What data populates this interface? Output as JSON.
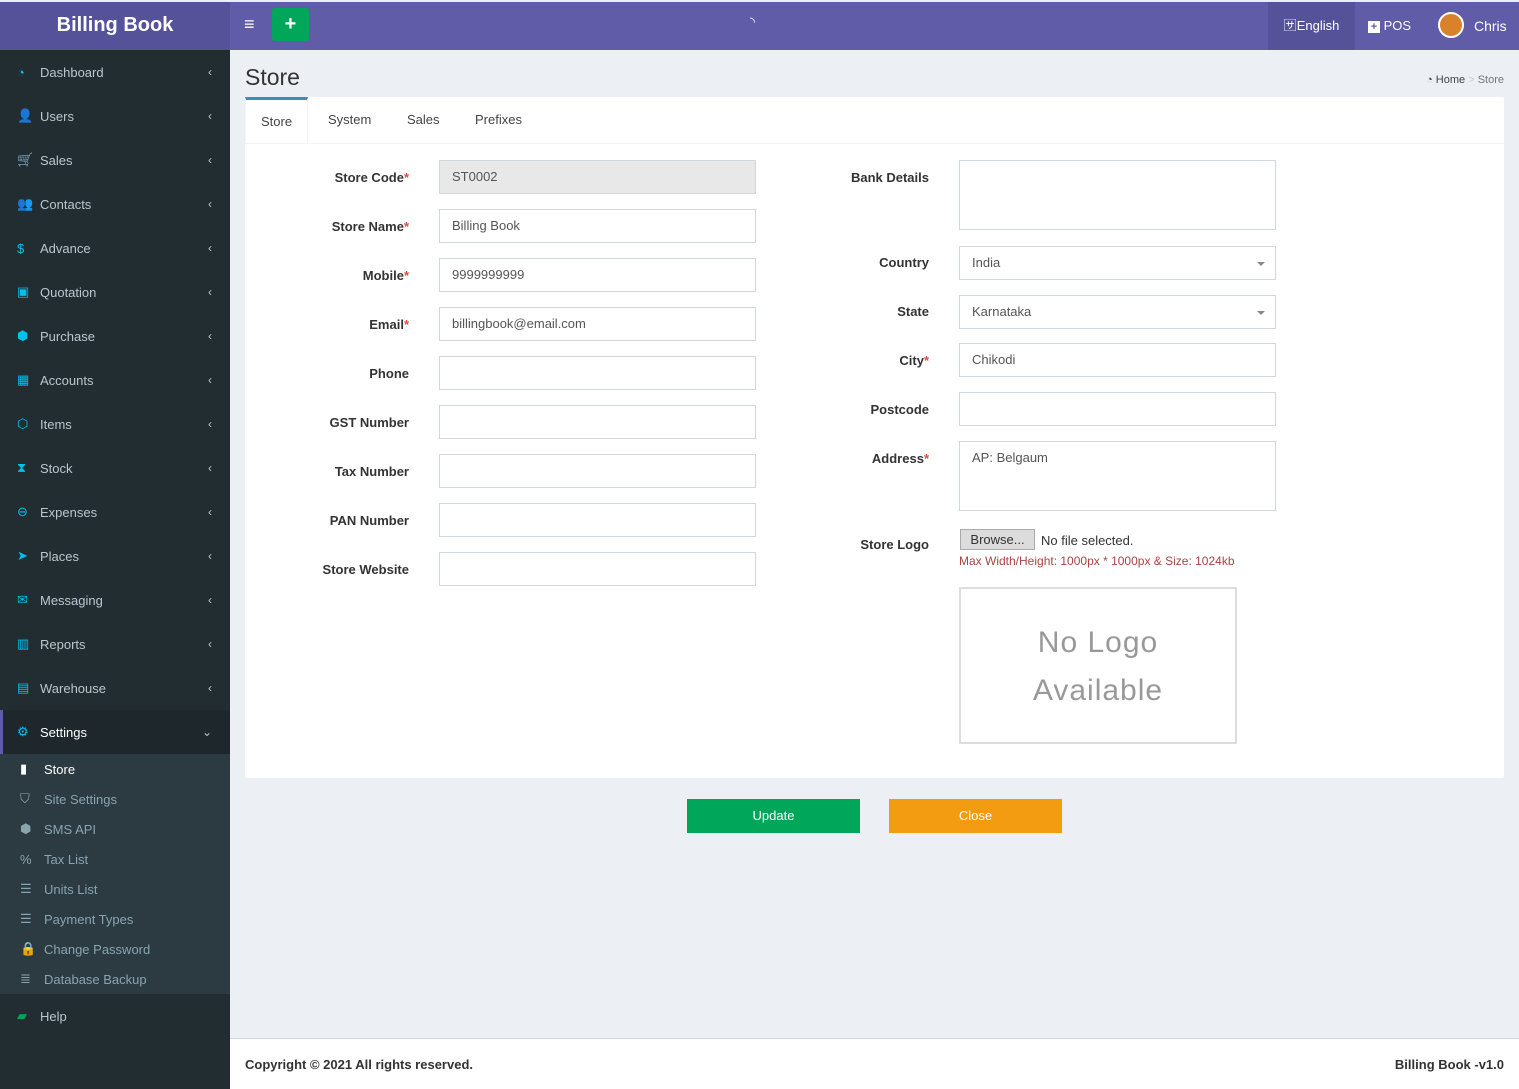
{
  "app": {
    "title": "Billing Book"
  },
  "topbar": {
    "language": "English",
    "pos": "POS",
    "user": "Chris"
  },
  "sidebar": {
    "items": [
      {
        "label": "Dashboard",
        "icon": "dashboard-icon",
        "glyph": "◔"
      },
      {
        "label": "Users",
        "icon": "user-plus-icon",
        "glyph": "👤"
      },
      {
        "label": "Sales",
        "icon": "cart-icon",
        "glyph": "🛒"
      },
      {
        "label": "Contacts",
        "icon": "users-icon",
        "glyph": "👥"
      },
      {
        "label": "Advance",
        "icon": "dollar-icon",
        "glyph": "$"
      },
      {
        "label": "Quotation",
        "icon": "calendar-plus-icon",
        "glyph": "▣"
      },
      {
        "label": "Purchase",
        "icon": "cube-icon",
        "glyph": "⬢"
      },
      {
        "label": "Accounts",
        "icon": "grid-icon",
        "glyph": "▦"
      },
      {
        "label": "Items",
        "icon": "cubes-icon",
        "glyph": "⬡"
      },
      {
        "label": "Stock",
        "icon": "hourglass-icon",
        "glyph": "⧗"
      },
      {
        "label": "Expenses",
        "icon": "minus-circle-icon",
        "glyph": "⊖"
      },
      {
        "label": "Places",
        "icon": "paper-plane-icon",
        "glyph": "➤"
      },
      {
        "label": "Messaging",
        "icon": "envelope-icon",
        "glyph": "✉"
      },
      {
        "label": "Reports",
        "icon": "bar-chart-icon",
        "glyph": "▥"
      },
      {
        "label": "Warehouse",
        "icon": "building-icon",
        "glyph": "▤"
      },
      {
        "label": "Settings",
        "icon": "cogs-icon",
        "glyph": "⚙"
      }
    ],
    "settings_sub": [
      {
        "label": "Store",
        "icon": "briefcase-icon",
        "glyph": "▮"
      },
      {
        "label": "Site Settings",
        "icon": "shield-icon",
        "glyph": "⛉"
      },
      {
        "label": "SMS API",
        "icon": "cube-icon",
        "glyph": "⬢"
      },
      {
        "label": "Tax List",
        "icon": "percent-icon",
        "glyph": "%"
      },
      {
        "label": "Units List",
        "icon": "list-icon",
        "glyph": "☰"
      },
      {
        "label": "Payment Types",
        "icon": "list-icon",
        "glyph": "☰"
      },
      {
        "label": "Change Password",
        "icon": "lock-icon",
        "glyph": "🔒"
      },
      {
        "label": "Database Backup",
        "icon": "database-icon",
        "glyph": "≣"
      }
    ],
    "help": {
      "label": "Help",
      "icon": "book-icon",
      "glyph": "▰"
    }
  },
  "page": {
    "title": "Store",
    "breadcrumb": {
      "home": "Home",
      "current": "Store"
    }
  },
  "tabs": [
    "Store",
    "System",
    "Sales",
    "Prefixes"
  ],
  "form": {
    "left": [
      {
        "label": "Store Code",
        "required": true,
        "value": "ST0002"
      },
      {
        "label": "Store Name",
        "required": true,
        "value": "Billing Book"
      },
      {
        "label": "Mobile",
        "required": true,
        "value": "9999999999"
      },
      {
        "label": "Email",
        "required": true,
        "value": "billingbook@email.com"
      },
      {
        "label": "Phone",
        "required": false,
        "value": ""
      },
      {
        "label": "GST Number",
        "required": false,
        "value": ""
      },
      {
        "label": "Tax Number",
        "required": false,
        "value": ""
      },
      {
        "label": "PAN Number",
        "required": false,
        "value": ""
      },
      {
        "label": "Store Website",
        "required": false,
        "value": ""
      }
    ],
    "bank_details": {
      "label": "Bank Details",
      "value": ""
    },
    "country": {
      "label": "Country",
      "value": "India"
    },
    "state": {
      "label": "State",
      "value": "Karnataka"
    },
    "city": {
      "label": "City",
      "value": "Chikodi"
    },
    "postcode": {
      "label": "Postcode",
      "value": ""
    },
    "address": {
      "label": "Address",
      "value": "AP: Belgaum"
    },
    "store_logo": {
      "label": "Store Logo",
      "browse": "Browse...",
      "file_status": "No file selected.",
      "hint": "Max Width/Height: 1000px * 1000px & Size: 1024kb",
      "placeholder_line1": "No Logo",
      "placeholder_line2": "Available"
    }
  },
  "buttons": {
    "update": "Update",
    "close": "Close"
  },
  "footer": {
    "copyright": "Copyright © 2021 All rights reserved.",
    "version": "Billing Book -v1.0"
  },
  "colors": {
    "header": "#605ca8",
    "sidebar": "#222d32",
    "update": "#00a65a",
    "close": "#f39c12",
    "required": "#dd4b39"
  }
}
